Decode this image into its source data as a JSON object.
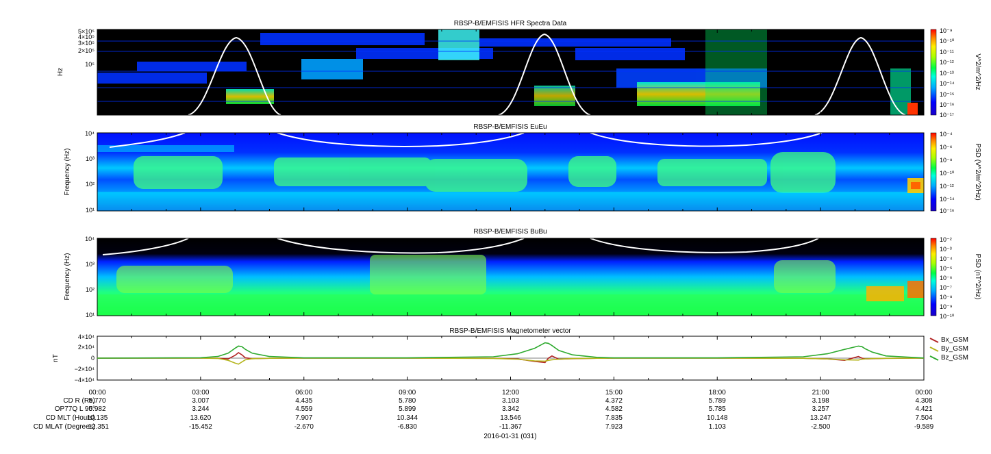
{
  "panels": [
    {
      "title": "RBSP-B/EMFISIS  HFR Spectra Data",
      "ylabel": "Hz",
      "y_ticks": [
        "5×10⁵",
        "4×10⁵",
        "3×10⁵",
        "2×10⁵",
        "10⁵"
      ],
      "colorbar_label": "V^2/m^2/Hz",
      "colorbar_ticks": [
        "10⁻⁹",
        "10⁻¹⁰",
        "10⁻¹¹",
        "10⁻¹²",
        "10⁻¹³",
        "10⁻¹⁴",
        "10⁻¹⁵",
        "10⁻¹⁶",
        "10⁻¹⁷"
      ]
    },
    {
      "title": "RBSP-B/EMFISIS  EuEu",
      "ylabel": "Frequency (Hz)",
      "y_ticks": [
        "10⁴",
        "10³",
        "10²",
        "10¹"
      ],
      "colorbar_label": "PSD (V^2/m^2/Hz)",
      "colorbar_ticks": [
        "10⁻⁴",
        "10⁻⁶",
        "10⁻⁸",
        "10⁻¹⁰",
        "10⁻¹²",
        "10⁻¹⁴",
        "10⁻¹⁶"
      ]
    },
    {
      "title": "RBSP-B/EMFISIS  BuBu",
      "ylabel": "Frequency (Hz)",
      "y_ticks": [
        "10⁴",
        "10³",
        "10²",
        "10¹"
      ],
      "colorbar_label": "PSD (nT^2/Hz)",
      "colorbar_ticks": [
        "10⁻²",
        "10⁻³",
        "10⁻⁴",
        "10⁻⁵",
        "10⁻⁶",
        "10⁻⁷",
        "10⁻⁸",
        "10⁻⁹",
        "10⁻¹⁰"
      ]
    },
    {
      "title": "RBSP-B/EMFISIS  Magnetometer vector",
      "ylabel": "nT",
      "y_ticks": [
        "4×10⁴",
        "2×10⁴",
        "0",
        "−2×10⁴",
        "−4×10⁴"
      ]
    }
  ],
  "chart_data": {
    "type": "line",
    "title": "RBSP-B/EMFISIS  Magnetometer vector",
    "ylabel": "nT",
    "ylim": [
      -40000,
      40000
    ],
    "x_hours": [
      0,
      3,
      3.5,
      3.8,
      4.0,
      4.1,
      4.2,
      4.3,
      4.5,
      5.0,
      6,
      9,
      11.5,
      12.2,
      12.7,
      13.0,
      13.1,
      13.2,
      13.4,
      13.8,
      14.5,
      15,
      18,
      20.5,
      21.2,
      21.7,
      22.1,
      22.2,
      22.3,
      22.5,
      22.9,
      24
    ],
    "series": [
      {
        "name": "Bx_GSM",
        "color": "#b22222",
        "values": [
          0,
          0,
          -200,
          -1500,
          5000,
          10000,
          6000,
          500,
          -1000,
          -300,
          0,
          0,
          -200,
          -1500,
          -6000,
          -8000,
          0,
          4000,
          -2000,
          -1000,
          -200,
          0,
          0,
          -200,
          -1500,
          -4000,
          3000,
          0,
          -1500,
          -1000,
          -400,
          0
        ]
      },
      {
        "name": "By_GSM",
        "color": "#b5b51e",
        "values": [
          0,
          0,
          -500,
          -4000,
          -9000,
          -11000,
          -7000,
          -3000,
          -1000,
          -300,
          0,
          0,
          -500,
          -2000,
          -5000,
          -5500,
          -4000,
          -3000,
          -2000,
          -800,
          -200,
          0,
          0,
          -300,
          -1500,
          -3000,
          -3500,
          -2000,
          -1500,
          -800,
          -300,
          0
        ]
      },
      {
        "name": "Bz_GSM",
        "color": "#2eaa2e",
        "values": [
          0,
          800,
          3000,
          9000,
          18000,
          22000,
          21000,
          16000,
          9000,
          3000,
          500,
          500,
          2500,
          8000,
          18000,
          28000,
          27000,
          23000,
          14000,
          6000,
          1500,
          500,
          500,
          2500,
          8000,
          16000,
          22000,
          21000,
          17000,
          11000,
          4000,
          200
        ]
      }
    ]
  },
  "time_axis": {
    "tick_labels": [
      "00:00",
      "03:00",
      "06:00",
      "09:00",
      "12:00",
      "15:00",
      "18:00",
      "21:00",
      "00:00"
    ],
    "date_label": "2016-01-31 (031)"
  },
  "ephemeris": {
    "labels": [
      "CD R (Re)",
      "OP77Q L 90°",
      "CD MLT (Hours)",
      "CD MLAT (Degrees)"
    ],
    "rows": [
      [
        "5.770",
        "3.007",
        "4.435",
        "5.780",
        "3.103",
        "4.372",
        "5.789",
        "3.198",
        "4.308"
      ],
      [
        "5.982",
        "3.244",
        "4.559",
        "5.899",
        "3.342",
        "4.582",
        "5.785",
        "3.257",
        "4.421"
      ],
      [
        "10.135",
        "13.620",
        "7.907",
        "10.344",
        "13.546",
        "7.835",
        "10.148",
        "13.247",
        "7.504"
      ],
      [
        "-12.351",
        "-15.452",
        "-2.670",
        "-6.830",
        "-11.367",
        "7.923",
        "1.103",
        "-2.500",
        "-9.589"
      ]
    ]
  },
  "colors": {
    "spectrogram_low": "#0000ff",
    "spectrogram_mid": "#00ff00",
    "spectrogram_high": "#ff0000",
    "hfr_background": "#000000",
    "overlay_line": "#ffffff"
  }
}
